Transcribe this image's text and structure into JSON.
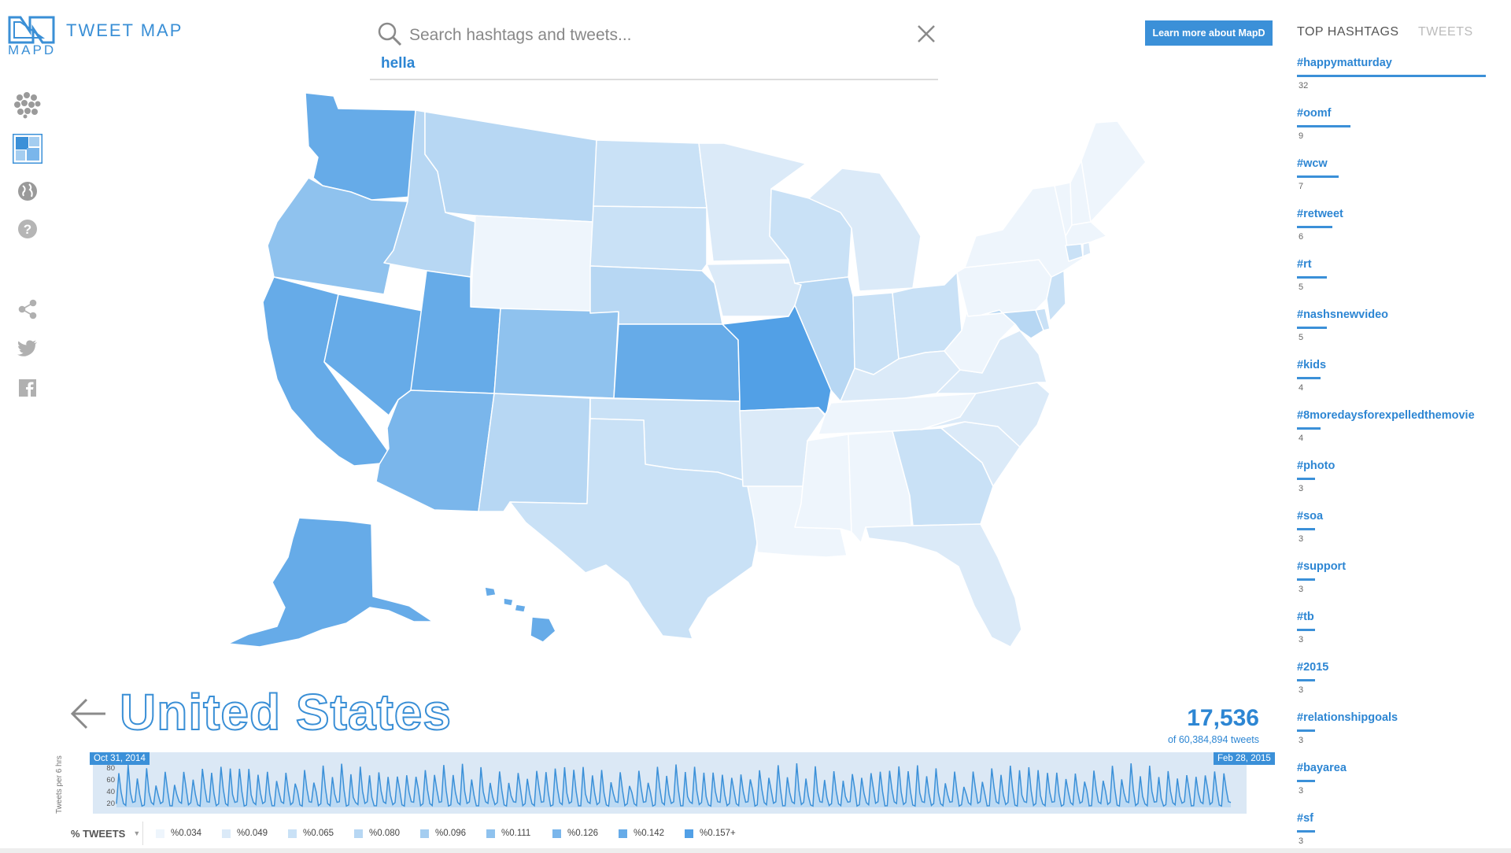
{
  "app": {
    "logo_word": "MAPD",
    "title": "TWEET MAP"
  },
  "rail": {
    "icons": [
      "heatmap-dots-icon",
      "choropleth-grid-icon",
      "globe-icon",
      "help-icon",
      "share-icon",
      "twitter-icon",
      "facebook-icon"
    ]
  },
  "search": {
    "placeholder": "Search hashtags and tweets...",
    "value": "",
    "active_term": "hella"
  },
  "learn_more": "Learn more about MapD",
  "sidebar": {
    "tabs": [
      "TOP HASHTAGS",
      "TWEETS"
    ],
    "active_tab": "TOP HASHTAGS",
    "hashtags": [
      {
        "tag": "#happymatturday",
        "count": 32
      },
      {
        "tag": "#oomf",
        "count": 9
      },
      {
        "tag": "#wcw",
        "count": 7
      },
      {
        "tag": "#retweet",
        "count": 6
      },
      {
        "tag": "#rt",
        "count": 5
      },
      {
        "tag": "#nashsnewvideo",
        "count": 5
      },
      {
        "tag": "#kids",
        "count": 4
      },
      {
        "tag": "#8moredaysforexpelledthemovie",
        "count": 4
      },
      {
        "tag": "#photo",
        "count": 3
      },
      {
        "tag": "#soa",
        "count": 3
      },
      {
        "tag": "#support",
        "count": 3
      },
      {
        "tag": "#tb",
        "count": 3
      },
      {
        "tag": "#2015",
        "count": 3
      },
      {
        "tag": "#relationshipgoals",
        "count": 3
      },
      {
        "tag": "#bayarea",
        "count": 3
      },
      {
        "tag": "#sf",
        "count": 3
      }
    ]
  },
  "map": {
    "region_title": "United States",
    "total_count": "17,536",
    "total_sub": "of 60,384,894 tweets",
    "palette": [
      "#eef5fc",
      "#dbeaf8",
      "#c9e1f6",
      "#b7d7f3",
      "#a4cdf0",
      "#8fc2ee",
      "#7ab6eb",
      "#66abe8",
      "#52a0e6"
    ],
    "state_levels": {
      "WA": 7,
      "OR": 5,
      "CA": 7,
      "NV": 7,
      "ID": 3,
      "MT": 3,
      "WY": 0,
      "UT": 7,
      "AZ": 6,
      "CO": 5,
      "NM": 3,
      "ND": 2,
      "SD": 2,
      "NE": 3,
      "KS": 7,
      "OK": 2,
      "TX": 2,
      "MN": 1,
      "IA": 1,
      "MO": 8,
      "AR": 1,
      "LA": 0,
      "WI": 2,
      "IL": 3,
      "MI": 1,
      "IN": 2,
      "OH": 2,
      "KY": 1,
      "TN": 0,
      "MS": 0,
      "AL": 0,
      "GA": 2,
      "FL": 1,
      "SC": 1,
      "NC": 1,
      "VA": 1,
      "WV": 0,
      "PA": 0,
      "NY": 0,
      "VT": 0,
      "NH": 0,
      "ME": 0,
      "MA": 0,
      "CT": 2,
      "RI": 1,
      "NJ": 2,
      "DE": 2,
      "MD": 3,
      "AK": 7,
      "HI": 7
    }
  },
  "timeline": {
    "start_label": "Oct 31, 2014",
    "end_label": "Feb 28, 2015",
    "y_axis_label": "Tweets per 6 hrs",
    "y_ticks": [
      "80",
      "60",
      "40",
      "20"
    ],
    "y_max": 90
  },
  "legend": {
    "dropdown_label": "% TWEETS",
    "items": [
      "%0.034",
      "%0.049",
      "%0.065",
      "%0.080",
      "%0.096",
      "%0.111",
      "%0.126",
      "%0.142",
      "%0.157+"
    ],
    "swatch_colors": [
      "#eef5fc",
      "#dbeaf8",
      "#c9e1f6",
      "#b7d7f3",
      "#a4cdf0",
      "#8fc2ee",
      "#7ab6eb",
      "#66abe8",
      "#52a0e6"
    ]
  }
}
